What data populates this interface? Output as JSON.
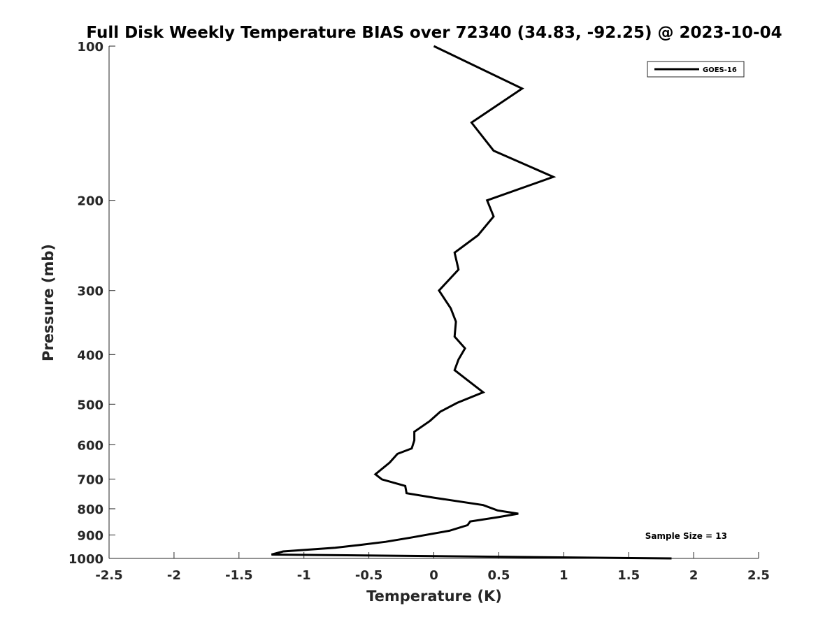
{
  "chart_data": {
    "type": "line",
    "title": "Full Disk Weekly Temperature BIAS over 72340 (34.83, -92.25) @ 2023-10-04",
    "xlabel": "Temperature (K)",
    "ylabel": "Pressure (mb)",
    "xlim": [
      -2.5,
      2.5
    ],
    "ylim": [
      100,
      1000
    ],
    "y_scale": "log",
    "y_reversed": true,
    "x_ticks": [
      "-2.5",
      "-2",
      "-1.5",
      "-1",
      "-0.5",
      "0",
      "0.5",
      "1",
      "1.5",
      "2",
      "2.5"
    ],
    "x_tick_values": [
      -2.5,
      -2,
      -1.5,
      -1,
      -0.5,
      0,
      0.5,
      1,
      1.5,
      2,
      2.5
    ],
    "y_ticks": [
      "100",
      "200",
      "300",
      "400",
      "500",
      "600",
      "700",
      "800",
      "900",
      "1000"
    ],
    "y_tick_values": [
      100,
      200,
      300,
      400,
      500,
      600,
      700,
      800,
      900,
      1000
    ],
    "grid": false,
    "legend_position": "top-right",
    "annotation": "Sample Size = 13",
    "series": [
      {
        "name": "GOES-16",
        "color": "#000000",
        "points": [
          {
            "x": 0.0,
            "y": 100
          },
          {
            "x": 0.68,
            "y": 121
          },
          {
            "x": 0.29,
            "y": 141
          },
          {
            "x": 0.46,
            "y": 160
          },
          {
            "x": 0.92,
            "y": 180
          },
          {
            "x": 0.41,
            "y": 200
          },
          {
            "x": 0.46,
            "y": 215
          },
          {
            "x": 0.34,
            "y": 234
          },
          {
            "x": 0.16,
            "y": 253
          },
          {
            "x": 0.19,
            "y": 273
          },
          {
            "x": 0.04,
            "y": 300
          },
          {
            "x": 0.13,
            "y": 325
          },
          {
            "x": 0.17,
            "y": 345
          },
          {
            "x": 0.16,
            "y": 369
          },
          {
            "x": 0.24,
            "y": 389
          },
          {
            "x": 0.19,
            "y": 409
          },
          {
            "x": 0.16,
            "y": 429
          },
          {
            "x": 0.26,
            "y": 449
          },
          {
            "x": 0.38,
            "y": 474
          },
          {
            "x": 0.18,
            "y": 497
          },
          {
            "x": 0.05,
            "y": 517
          },
          {
            "x": -0.03,
            "y": 539
          },
          {
            "x": -0.15,
            "y": 566
          },
          {
            "x": -0.15,
            "y": 588
          },
          {
            "x": -0.17,
            "y": 610
          },
          {
            "x": -0.28,
            "y": 625
          },
          {
            "x": -0.34,
            "y": 650
          },
          {
            "x": -0.45,
            "y": 685
          },
          {
            "x": -0.4,
            "y": 701
          },
          {
            "x": -0.22,
            "y": 722
          },
          {
            "x": -0.21,
            "y": 746
          },
          {
            "x": 0.0,
            "y": 761
          },
          {
            "x": 0.38,
            "y": 787
          },
          {
            "x": 0.49,
            "y": 806
          },
          {
            "x": 0.65,
            "y": 818
          },
          {
            "x": 0.49,
            "y": 831
          },
          {
            "x": 0.28,
            "y": 847
          },
          {
            "x": 0.26,
            "y": 861
          },
          {
            "x": 0.12,
            "y": 883
          },
          {
            "x": -0.18,
            "y": 911
          },
          {
            "x": -0.37,
            "y": 928
          },
          {
            "x": -0.58,
            "y": 942
          },
          {
            "x": -0.76,
            "y": 953
          },
          {
            "x": -1.16,
            "y": 969
          },
          {
            "x": -1.25,
            "y": 983
          },
          {
            "x": 1.83,
            "y": 1000
          }
        ]
      }
    ]
  }
}
